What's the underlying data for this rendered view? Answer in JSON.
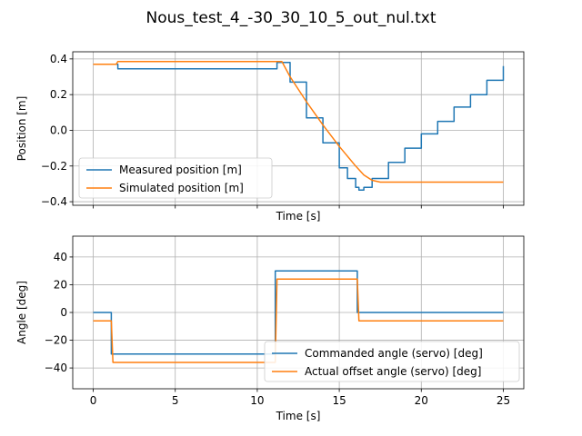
{
  "figure": {
    "title": "Nous_test_4_-30_30_10_5_out_nul.txt"
  },
  "colors": {
    "series1": "#1f77b4",
    "series2": "#ff7f0e",
    "grid": "#b0b0b0"
  },
  "chart_data": [
    {
      "type": "line",
      "xlabel": "Time [s]",
      "ylabel": "Position [m]",
      "xlim": [
        -1.25,
        26.25
      ],
      "ylim": [
        -0.42,
        0.44
      ],
      "xticks": [
        0,
        5,
        10,
        15,
        20,
        25
      ],
      "yticks": [
        -0.4,
        -0.2,
        0.0,
        0.2,
        0.4
      ],
      "ytick_labels": [
        "−0.4",
        "−0.2",
        "0.0",
        "0.2",
        "0.4"
      ],
      "xtick_labels_visible": false,
      "grid": true,
      "legend": "lower-left",
      "series": [
        {
          "name": "Measured position [m]",
          "color": "#1f77b4",
          "step": true,
          "x": [
            0,
            1.0,
            1.5,
            11.0,
            11.2,
            11.5,
            12.0,
            13.0,
            14.0,
            15.0,
            15.5,
            16.0,
            16.2,
            16.5,
            17.0,
            18.0,
            19.0,
            20.0,
            21.0,
            22.0,
            23.0,
            24.0,
            25.0
          ],
          "y": [
            0.37,
            0.37,
            0.345,
            0.345,
            0.38,
            0.38,
            0.27,
            0.07,
            -0.07,
            -0.21,
            -0.27,
            -0.32,
            -0.335,
            -0.32,
            -0.27,
            -0.18,
            -0.1,
            -0.02,
            0.05,
            0.13,
            0.2,
            0.28,
            0.36
          ]
        },
        {
          "name": "Simulated position [m]",
          "color": "#ff7f0e",
          "step": false,
          "x": [
            0,
            1.4,
            1.5,
            11.5,
            12.0,
            13.0,
            14.0,
            15.0,
            16.0,
            16.5,
            17.0,
            17.5,
            18.0,
            25.0
          ],
          "y": [
            0.37,
            0.37,
            0.385,
            0.385,
            0.3,
            0.16,
            0.03,
            -0.09,
            -0.2,
            -0.25,
            -0.28,
            -0.29,
            -0.29,
            -0.29
          ]
        }
      ]
    },
    {
      "type": "line",
      "xlabel": "Time [s]",
      "ylabel": "Angle [deg]",
      "xlim": [
        -1.25,
        26.25
      ],
      "ylim": [
        -55,
        55
      ],
      "xticks": [
        0,
        5,
        10,
        15,
        20,
        25
      ],
      "yticks": [
        -40,
        -20,
        0,
        20,
        40
      ],
      "ytick_labels": [
        "−40",
        "−20",
        "0",
        "20",
        "40"
      ],
      "xtick_labels_visible": true,
      "grid": true,
      "legend": "lower-right",
      "series": [
        {
          "name": "Commanded angle (servo) [deg]",
          "color": "#1f77b4",
          "step": false,
          "x": [
            0,
            1.1,
            1.1,
            11.1,
            11.1,
            16.1,
            16.1,
            25
          ],
          "y": [
            0,
            0,
            -30,
            -30,
            30,
            30,
            0,
            0
          ]
        },
        {
          "name": "Actual offset angle (servo) [deg]",
          "color": "#ff7f0e",
          "step": false,
          "x": [
            0,
            1.1,
            1.2,
            11.1,
            11.2,
            16.1,
            16.2,
            25
          ],
          "y": [
            -6,
            -6,
            -36,
            -36,
            24,
            24,
            -6,
            -6
          ]
        }
      ]
    }
  ]
}
